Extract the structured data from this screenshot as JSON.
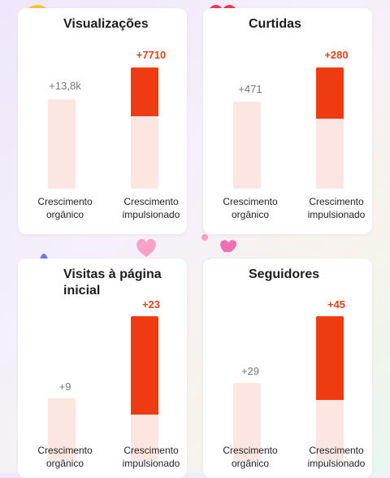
{
  "cards": [
    {
      "title": "Visualizações",
      "organic": {
        "value": "+13,8k",
        "label": "Crescimento orgânico"
      },
      "boosted": {
        "value": "+7710",
        "label": "Crescimento impulsionado"
      }
    },
    {
      "title": "Curtidas",
      "organic": {
        "value": "+471",
        "label": "Crescimento orgânico"
      },
      "boosted": {
        "value": "+280",
        "label": "Crescimento impulsionado"
      }
    },
    {
      "title": "Visitas à página inicial",
      "organic": {
        "value": "+9",
        "label": "Crescimento orgânico"
      },
      "boosted": {
        "value": "+23",
        "label": "Crescimento impulsionado"
      }
    },
    {
      "title": "Seguidores",
      "organic": {
        "value": "+29",
        "label": "Crescimento orgânico"
      },
      "boosted": {
        "value": "+45",
        "label": "Crescimento impulsionado"
      }
    }
  ]
}
